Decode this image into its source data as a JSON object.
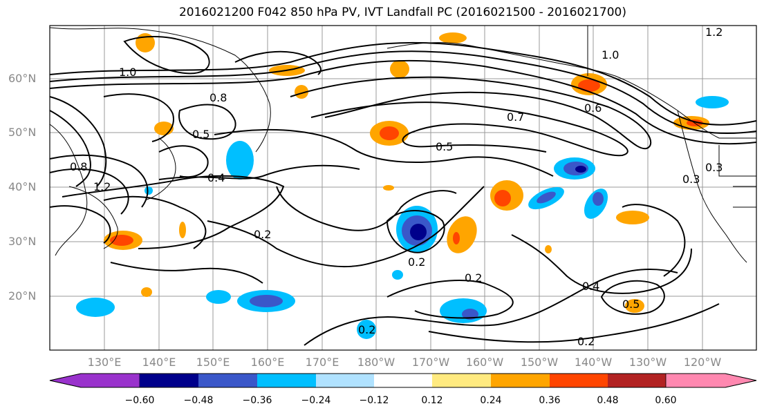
{
  "title": "2016021200 F042 850 hPa PV, IVT Landfall PC (2016021500 - 2016021700)",
  "map": {
    "lat_labels": [
      "60°N",
      "50°N",
      "40°N",
      "30°N",
      "20°N"
    ],
    "lon_labels": [
      "130°E",
      "140°E",
      "150°E",
      "160°E",
      "170°E",
      "180°W",
      "170°W",
      "160°W",
      "150°W",
      "140°W",
      "130°W",
      "120°W"
    ],
    "contour_labels": [
      "0.5",
      "0.7",
      "0.6",
      "0.4",
      "0.2",
      "0.2",
      "0.4",
      "0.2",
      "0.2",
      "0.8",
      "1.0",
      "1.2",
      "0.8",
      "0.5",
      "0.3",
      "0.3",
      "0.2",
      "0.5",
      "1.0",
      "1.2"
    ]
  },
  "colorbar": {
    "ticks": [
      "−0.60",
      "−0.48",
      "−0.36",
      "−0.24",
      "−0.12",
      "0.12",
      "0.24",
      "0.36",
      "0.48",
      "0.60"
    ],
    "colors": [
      "#9932cc",
      "#00008b",
      "#3a57c9",
      "#00bfff",
      "#b0e2ff",
      "#ffffff",
      "#ffea80",
      "#ffa500",
      "#ff4500",
      "#b22222",
      "#ff88b0"
    ]
  },
  "colors": {
    "positive_strong": "#ff4500",
    "positive": "#ffa500",
    "positive_weak": "#ffea80",
    "negative_strong": "#00008b",
    "negative_mid": "#3a57c9",
    "negative": "#00bfff",
    "negative_weak": "#b0e2ff"
  }
}
